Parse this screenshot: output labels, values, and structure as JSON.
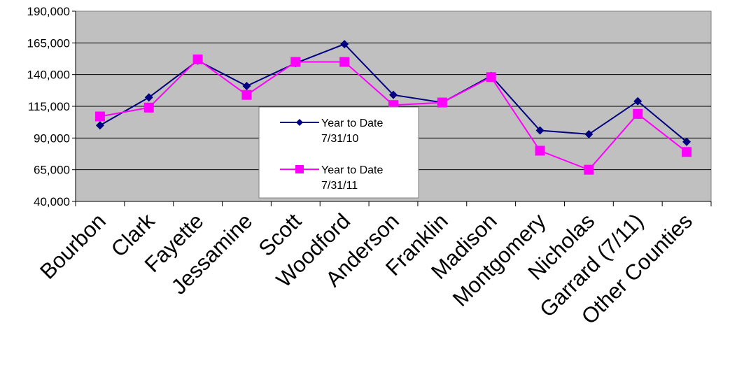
{
  "chart_data": {
    "type": "line",
    "title": "",
    "xlabel": "",
    "ylabel": "",
    "ylim": [
      40000,
      190000
    ],
    "yticks": [
      40000,
      65000,
      90000,
      115000,
      140000,
      165000,
      190000
    ],
    "ytick_labels": [
      "40,000",
      "65,000",
      "90,000",
      "115,000",
      "140,000",
      "165,000",
      "190,000"
    ],
    "categories": [
      "Bourbon",
      "Clark",
      "Fayette",
      "Jessamine",
      "Scott",
      "Woodford",
      "Anderson",
      "Franklin",
      "Madison",
      "Montgomery",
      "Nicholas",
      "Garrard (7/11)",
      "Other Counties"
    ],
    "series": [
      {
        "name": "Year to Date 7/31/10",
        "legend_lines": [
          "Year to Date",
          "7/31/10"
        ],
        "color": "#000080",
        "marker": "diamond",
        "values": [
          100000,
          122000,
          151000,
          131000,
          149000,
          164000,
          124000,
          118000,
          139000,
          96000,
          93000,
          119000,
          87000
        ]
      },
      {
        "name": "Year to Date 7/31/11",
        "legend_lines": [
          "Year to Date",
          "7/31/11"
        ],
        "color": "#FF00FF",
        "marker": "square",
        "values": [
          107000,
          114000,
          152000,
          124000,
          150000,
          150000,
          116000,
          118000,
          138000,
          80000,
          65000,
          109000,
          79000
        ]
      }
    ],
    "grid": true,
    "plot_background": "#C0C0C0",
    "legend_position": "center"
  }
}
